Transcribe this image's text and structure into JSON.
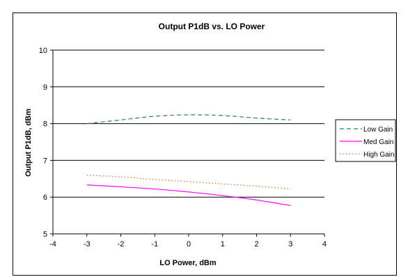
{
  "chart_data": {
    "type": "line",
    "title": "Output P1dB vs. LO Power",
    "xlabel": "LO Power, dBm",
    "ylabel": "Output P1dB, dBm",
    "xlim": [
      -4,
      4
    ],
    "ylim": [
      5,
      10
    ],
    "x_ticks": [
      "-4",
      "-3",
      "-2",
      "-1",
      "0",
      "1",
      "2",
      "3",
      "4"
    ],
    "y_ticks": [
      "5",
      "6",
      "7",
      "8",
      "9",
      "10"
    ],
    "grid": "horizontal major gridlines",
    "legend_position": "right",
    "series": [
      {
        "name": "Low Gain",
        "color": "#2e7d5b",
        "dash": "dashed",
        "x": [
          -3,
          -2,
          -1,
          0,
          1,
          2,
          3
        ],
        "y": [
          8.0,
          8.1,
          8.2,
          8.24,
          8.22,
          8.15,
          8.1
        ]
      },
      {
        "name": "Med Gain",
        "color": "#ff00ff",
        "dash": "solid",
        "x": [
          -3,
          -2,
          -1,
          0,
          1,
          2,
          3
        ],
        "y": [
          6.33,
          6.28,
          6.22,
          6.14,
          6.04,
          5.92,
          5.77
        ]
      },
      {
        "name": "High Gain",
        "color": "#d2691e",
        "dash": "dotted",
        "x": [
          -3,
          -2,
          -1,
          0,
          1,
          2,
          3
        ],
        "y": [
          6.6,
          6.55,
          6.48,
          6.42,
          6.36,
          6.3,
          6.22
        ]
      }
    ]
  }
}
